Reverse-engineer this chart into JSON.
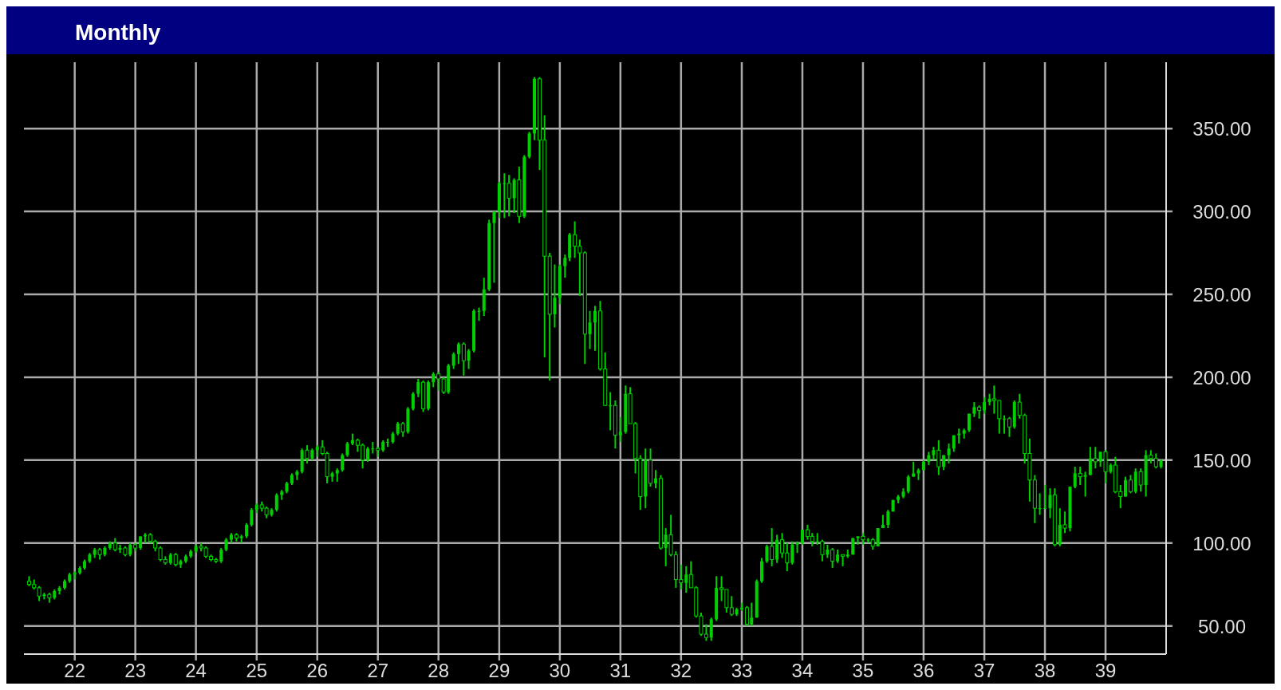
{
  "chart_data": {
    "type": "candlestick",
    "title": "Monthly",
    "color": "#00d000",
    "grid": true,
    "xlim": [
      "1921-03",
      "1940-01"
    ],
    "ylim": [
      33,
      390
    ],
    "xticks": [
      {
        "value": "1922-01",
        "label": "22"
      },
      {
        "value": "1923-01",
        "label": "23"
      },
      {
        "value": "1924-01",
        "label": "24"
      },
      {
        "value": "1925-01",
        "label": "25"
      },
      {
        "value": "1926-01",
        "label": "26"
      },
      {
        "value": "1927-01",
        "label": "27"
      },
      {
        "value": "1928-01",
        "label": "28"
      },
      {
        "value": "1929-01",
        "label": "29"
      },
      {
        "value": "1930-01",
        "label": "30"
      },
      {
        "value": "1931-01",
        "label": "31"
      },
      {
        "value": "1932-01",
        "label": "32"
      },
      {
        "value": "1933-01",
        "label": "33"
      },
      {
        "value": "1934-01",
        "label": "34"
      },
      {
        "value": "1935-01",
        "label": "35"
      },
      {
        "value": "1936-01",
        "label": "36"
      },
      {
        "value": "1937-01",
        "label": "37"
      },
      {
        "value": "1938-01",
        "label": "38"
      },
      {
        "value": "1939-01",
        "label": "39"
      }
    ],
    "yticks": [
      {
        "value": 50,
        "label": "50.00"
      },
      {
        "value": 100,
        "label": "100.00"
      },
      {
        "value": 150,
        "label": "150.00"
      },
      {
        "value": 200,
        "label": "200.00"
      },
      {
        "value": 250,
        "label": "250.00"
      },
      {
        "value": 300,
        "label": "300.00"
      },
      {
        "value": 350,
        "label": "350.00"
      }
    ],
    "x": [
      "1921-04",
      "1921-05",
      "1921-06",
      "1921-07",
      "1921-08",
      "1921-09",
      "1921-10",
      "1921-11",
      "1921-12",
      "1922-01",
      "1922-02",
      "1922-03",
      "1922-04",
      "1922-05",
      "1922-06",
      "1922-07",
      "1922-08",
      "1922-09",
      "1922-10",
      "1922-11",
      "1922-12",
      "1923-01",
      "1923-02",
      "1923-03",
      "1923-04",
      "1923-05",
      "1923-06",
      "1923-07",
      "1923-08",
      "1923-09",
      "1923-10",
      "1923-11",
      "1923-12",
      "1924-01",
      "1924-02",
      "1924-03",
      "1924-04",
      "1924-05",
      "1924-06",
      "1924-07",
      "1924-08",
      "1924-09",
      "1924-10",
      "1924-11",
      "1924-12",
      "1925-01",
      "1925-02",
      "1925-03",
      "1925-04",
      "1925-05",
      "1925-06",
      "1925-07",
      "1925-08",
      "1925-09",
      "1925-10",
      "1925-11",
      "1925-12",
      "1926-01",
      "1926-02",
      "1926-03",
      "1926-04",
      "1926-05",
      "1926-06",
      "1926-07",
      "1926-08",
      "1926-09",
      "1926-10",
      "1926-11",
      "1926-12",
      "1927-01",
      "1927-02",
      "1927-03",
      "1927-04",
      "1927-05",
      "1927-06",
      "1927-07",
      "1927-08",
      "1927-09",
      "1927-10",
      "1927-11",
      "1927-12",
      "1928-01",
      "1928-02",
      "1928-03",
      "1928-04",
      "1928-05",
      "1928-06",
      "1928-07",
      "1928-08",
      "1928-09",
      "1928-10",
      "1928-11",
      "1928-12",
      "1929-01",
      "1929-02",
      "1929-03",
      "1929-04",
      "1929-05",
      "1929-06",
      "1929-07",
      "1929-08",
      "1929-09",
      "1929-10",
      "1929-11",
      "1929-12",
      "1930-01",
      "1930-02",
      "1930-03",
      "1930-04",
      "1930-05",
      "1930-06",
      "1930-07",
      "1930-08",
      "1930-09",
      "1930-10",
      "1930-11",
      "1930-12",
      "1931-01",
      "1931-02",
      "1931-03",
      "1931-04",
      "1931-05",
      "1931-06",
      "1931-07",
      "1931-08",
      "1931-09",
      "1931-10",
      "1931-11",
      "1931-12",
      "1932-01",
      "1932-02",
      "1932-03",
      "1932-04",
      "1932-05",
      "1932-06",
      "1932-07",
      "1932-08",
      "1932-09",
      "1932-10",
      "1932-11",
      "1932-12",
      "1933-01",
      "1933-02",
      "1933-03",
      "1933-04",
      "1933-05",
      "1933-06",
      "1933-07",
      "1933-08",
      "1933-09",
      "1933-10",
      "1933-11",
      "1933-12",
      "1934-01",
      "1934-02",
      "1934-03",
      "1934-04",
      "1934-05",
      "1934-06",
      "1934-07",
      "1934-08",
      "1934-09",
      "1934-10",
      "1934-11",
      "1934-12",
      "1935-01",
      "1935-02",
      "1935-03",
      "1935-04",
      "1935-05",
      "1935-06",
      "1935-07",
      "1935-08",
      "1935-09",
      "1935-10",
      "1935-11",
      "1935-12",
      "1936-01",
      "1936-02",
      "1936-03",
      "1936-04",
      "1936-05",
      "1936-06",
      "1936-07",
      "1936-08",
      "1936-09",
      "1936-10",
      "1936-11",
      "1936-12",
      "1937-01",
      "1937-02",
      "1937-03",
      "1937-04",
      "1937-05",
      "1937-06",
      "1937-07",
      "1937-08",
      "1937-09",
      "1937-10",
      "1937-11",
      "1937-12",
      "1938-01",
      "1938-02",
      "1938-03",
      "1938-04",
      "1938-05",
      "1938-06",
      "1938-07",
      "1938-08",
      "1938-09",
      "1938-10",
      "1938-11",
      "1938-12",
      "1939-01",
      "1939-02",
      "1939-03",
      "1939-04",
      "1939-05",
      "1939-06",
      "1939-07",
      "1939-08",
      "1939-09",
      "1939-10",
      "1939-11",
      "1939-12"
    ],
    "ohlc": [
      [
        77,
        80,
        74,
        75
      ],
      [
        75,
        78,
        72,
        73
      ],
      [
        73,
        74,
        65,
        68
      ],
      [
        68,
        70,
        66,
        69
      ],
      [
        69,
        70,
        64,
        67
      ],
      [
        67,
        72,
        66,
        71
      ],
      [
        71,
        74,
        69,
        73
      ],
      [
        73,
        78,
        72,
        77
      ],
      [
        77,
        82,
        76,
        81
      ],
      [
        81,
        83,
        78,
        82
      ],
      [
        82,
        86,
        81,
        85
      ],
      [
        85,
        90,
        84,
        89
      ],
      [
        89,
        94,
        88,
        93
      ],
      [
        93,
        97,
        91,
        96
      ],
      [
        96,
        97,
        90,
        93
      ],
      [
        93,
        98,
        92,
        97
      ],
      [
        97,
        101,
        96,
        100
      ],
      [
        100,
        103,
        95,
        96
      ],
      [
        96,
        99,
        94,
        97
      ],
      [
        97,
        98,
        92,
        93
      ],
      [
        93,
        100,
        92,
        99
      ],
      [
        99,
        100,
        95,
        97
      ],
      [
        97,
        104,
        96,
        104
      ],
      [
        104,
        106,
        100,
        105
      ],
      [
        105,
        106,
        100,
        101
      ],
      [
        101,
        102,
        95,
        97
      ],
      [
        97,
        98,
        89,
        90
      ],
      [
        90,
        92,
        87,
        88
      ],
      [
        88,
        94,
        87,
        93
      ],
      [
        93,
        94,
        86,
        87
      ],
      [
        87,
        90,
        85,
        89
      ],
      [
        89,
        93,
        88,
        92
      ],
      [
        92,
        96,
        91,
        95
      ],
      [
        95,
        99,
        94,
        98
      ],
      [
        98,
        100,
        95,
        97
      ],
      [
        97,
        98,
        91,
        92
      ],
      [
        92,
        93,
        89,
        90
      ],
      [
        90,
        91,
        88,
        89
      ],
      [
        89,
        97,
        88,
        96
      ],
      [
        96,
        103,
        95,
        102
      ],
      [
        102,
        106,
        100,
        105
      ],
      [
        105,
        106,
        101,
        103
      ],
      [
        103,
        105,
        100,
        104
      ],
      [
        104,
        112,
        103,
        111
      ],
      [
        111,
        121,
        110,
        120
      ],
      [
        120,
        124,
        118,
        123
      ],
      [
        123,
        125,
        119,
        121
      ],
      [
        121,
        122,
        115,
        117
      ],
      [
        117,
        121,
        116,
        120
      ],
      [
        120,
        130,
        119,
        129
      ],
      [
        129,
        132,
        126,
        131
      ],
      [
        131,
        137,
        130,
        136
      ],
      [
        136,
        142,
        135,
        141
      ],
      [
        141,
        144,
        138,
        143
      ],
      [
        143,
        157,
        142,
        156
      ],
      [
        156,
        159,
        148,
        151
      ],
      [
        151,
        157,
        150,
        156
      ],
      [
        156,
        159,
        152,
        158
      ],
      [
        158,
        162,
        153,
        154
      ],
      [
        154,
        155,
        136,
        140
      ],
      [
        140,
        143,
        137,
        142
      ],
      [
        142,
        145,
        137,
        144
      ],
      [
        144,
        154,
        143,
        153
      ],
      [
        153,
        161,
        152,
        160
      ],
      [
        160,
        166,
        159,
        162
      ],
      [
        162,
        163,
        155,
        159
      ],
      [
        159,
        160,
        145,
        150
      ],
      [
        150,
        158,
        149,
        157
      ],
      [
        157,
        161,
        154,
        157
      ],
      [
        157,
        158,
        152,
        156
      ],
      [
        156,
        162,
        155,
        161
      ],
      [
        161,
        163,
        158,
        161
      ],
      [
        161,
        167,
        160,
        166
      ],
      [
        166,
        173,
        165,
        172
      ],
      [
        172,
        173,
        164,
        167
      ],
      [
        167,
        182,
        166,
        181
      ],
      [
        181,
        191,
        180,
        190
      ],
      [
        190,
        199,
        188,
        197
      ],
      [
        197,
        198,
        179,
        181
      ],
      [
        181,
        198,
        180,
        197
      ],
      [
        197,
        203,
        194,
        202
      ],
      [
        202,
        203,
        192,
        199
      ],
      [
        199,
        200,
        190,
        191
      ],
      [
        191,
        208,
        190,
        207
      ],
      [
        207,
        215,
        205,
        214
      ],
      [
        214,
        221,
        208,
        220
      ],
      [
        220,
        221,
        201,
        210
      ],
      [
        210,
        217,
        205,
        216
      ],
      [
        216,
        241,
        215,
        240
      ],
      [
        240,
        242,
        234,
        240
      ],
      [
        240,
        260,
        237,
        253
      ],
      [
        253,
        295,
        252,
        293
      ],
      [
        293,
        300,
        257,
        300
      ],
      [
        300,
        318,
        296,
        317
      ],
      [
        317,
        323,
        296,
        317
      ],
      [
        317,
        322,
        297,
        308
      ],
      [
        308,
        320,
        299,
        319
      ],
      [
        319,
        327,
        293,
        297
      ],
      [
        297,
        334,
        296,
        333
      ],
      [
        333,
        348,
        332,
        347
      ],
      [
        347,
        381,
        343,
        380
      ],
      [
        380,
        381,
        325,
        343
      ],
      [
        343,
        358,
        212,
        273
      ],
      [
        273,
        275,
        198,
        238
      ],
      [
        238,
        268,
        230,
        248
      ],
      [
        248,
        268,
        244,
        267
      ],
      [
        267,
        274,
        260,
        272
      ],
      [
        272,
        287,
        270,
        286
      ],
      [
        286,
        294,
        272,
        279
      ],
      [
        279,
        283,
        249,
        275
      ],
      [
        275,
        276,
        208,
        226
      ],
      [
        226,
        240,
        217,
        233
      ],
      [
        233,
        243,
        216,
        240
      ],
      [
        240,
        246,
        204,
        205
      ],
      [
        205,
        215,
        183,
        183
      ],
      [
        183,
        191,
        168,
        183
      ],
      [
        183,
        186,
        157,
        165
      ],
      [
        165,
        176,
        161,
        167
      ],
      [
        167,
        195,
        166,
        190
      ],
      [
        190,
        194,
        172,
        172
      ],
      [
        172,
        173,
        142,
        151
      ],
      [
        151,
        153,
        120,
        128
      ],
      [
        128,
        157,
        121,
        150
      ],
      [
        150,
        157,
        134,
        136
      ],
      [
        136,
        144,
        133,
        139
      ],
      [
        139,
        141,
        96,
        97
      ],
      [
        97,
        109,
        86,
        105
      ],
      [
        105,
        117,
        92,
        93
      ],
      [
        93,
        95,
        73,
        78
      ],
      [
        78,
        87,
        72,
        76
      ],
      [
        76,
        86,
        70,
        81
      ],
      [
        81,
        89,
        73,
        73
      ],
      [
        73,
        74,
        55,
        56
      ],
      [
        56,
        58,
        44,
        45
      ],
      [
        45,
        51,
        41,
        43
      ],
      [
        43,
        55,
        41,
        54
      ],
      [
        54,
        80,
        53,
        73
      ],
      [
        73,
        80,
        65,
        72
      ],
      [
        72,
        72,
        58,
        61
      ],
      [
        61,
        68,
        56,
        57
      ],
      [
        57,
        61,
        56,
        60
      ],
      [
        60,
        64,
        59,
        61
      ],
      [
        61,
        62,
        50,
        51
      ],
      [
        51,
        64,
        50,
        55
      ],
      [
        55,
        78,
        55,
        77
      ],
      [
        77,
        91,
        76,
        89
      ],
      [
        89,
        99,
        88,
        98
      ],
      [
        98,
        109,
        86,
        90
      ],
      [
        90,
        105,
        88,
        102
      ],
      [
        102,
        106,
        91,
        94
      ],
      [
        94,
        100,
        83,
        88
      ],
      [
        88,
        101,
        87,
        99
      ],
      [
        99,
        101,
        94,
        100
      ],
      [
        100,
        108,
        99,
        108
      ],
      [
        108,
        111,
        102,
        104
      ],
      [
        104,
        106,
        98,
        101
      ],
      [
        101,
        106,
        99,
        101
      ],
      [
        101,
        102,
        89,
        93
      ],
      [
        93,
        99,
        91,
        96
      ],
      [
        96,
        97,
        85,
        89
      ],
      [
        89,
        96,
        88,
        93
      ],
      [
        93,
        93,
        86,
        92
      ],
      [
        92,
        96,
        91,
        93
      ],
      [
        93,
        103,
        93,
        103
      ],
      [
        103,
        104,
        99,
        104
      ],
      [
        104,
        106,
        99,
        102
      ],
      [
        102,
        103,
        100,
        102
      ],
      [
        102,
        103,
        96,
        98
      ],
      [
        98,
        109,
        98,
        109
      ],
      [
        109,
        117,
        109,
        111
      ],
      [
        111,
        120,
        109,
        119
      ],
      [
        119,
        126,
        119,
        126
      ],
      [
        126,
        129,
        124,
        128
      ],
      [
        128,
        133,
        127,
        131
      ],
      [
        131,
        141,
        130,
        140
      ],
      [
        140,
        149,
        140,
        142
      ],
      [
        142,
        145,
        138,
        144
      ],
      [
        144,
        150,
        144,
        149
      ],
      [
        149,
        155,
        147,
        153
      ],
      [
        153,
        158,
        150,
        156
      ],
      [
        156,
        162,
        141,
        146
      ],
      [
        146,
        153,
        144,
        153
      ],
      [
        153,
        160,
        148,
        157
      ],
      [
        157,
        165,
        155,
        165
      ],
      [
        165,
        169,
        160,
        166
      ],
      [
        166,
        169,
        163,
        168
      ],
      [
        168,
        178,
        167,
        178
      ],
      [
        178,
        185,
        176,
        182
      ],
      [
        182,
        183,
        175,
        180
      ],
      [
        180,
        188,
        178,
        185
      ],
      [
        185,
        190,
        183,
        187
      ],
      [
        187,
        195,
        178,
        186
      ],
      [
        186,
        186,
        166,
        175
      ],
      [
        175,
        177,
        166,
        175
      ],
      [
        175,
        176,
        164,
        170
      ],
      [
        170,
        186,
        169,
        185
      ],
      [
        185,
        190,
        175,
        177
      ],
      [
        177,
        178,
        148,
        154
      ],
      [
        154,
        163,
        125,
        138
      ],
      [
        138,
        141,
        112,
        121
      ],
      [
        121,
        130,
        117,
        121
      ],
      [
        121,
        135,
        121,
        121
      ],
      [
        121,
        133,
        115,
        129
      ],
      [
        129,
        133,
        98,
        99
      ],
      [
        99,
        121,
        98,
        111
      ],
      [
        111,
        119,
        106,
        109
      ],
      [
        109,
        134,
        107,
        134
      ],
      [
        134,
        146,
        133,
        142
      ],
      [
        142,
        146,
        135,
        140
      ],
      [
        140,
        143,
        128,
        141
      ],
      [
        141,
        158,
        141,
        151
      ],
      [
        151,
        158,
        145,
        149
      ],
      [
        149,
        155,
        146,
        155
      ],
      [
        155,
        156,
        136,
        143
      ],
      [
        143,
        148,
        142,
        147
      ],
      [
        147,
        152,
        130,
        131
      ],
      [
        131,
        135,
        121,
        128
      ],
      [
        128,
        140,
        128,
        138
      ],
      [
        138,
        141,
        130,
        131
      ],
      [
        131,
        145,
        130,
        143
      ],
      [
        143,
        145,
        131,
        135
      ],
      [
        135,
        156,
        128,
        153
      ],
      [
        153,
        156,
        148,
        151
      ],
      [
        151,
        154,
        145,
        146
      ],
      [
        146,
        150,
        145,
        150
      ]
    ]
  }
}
